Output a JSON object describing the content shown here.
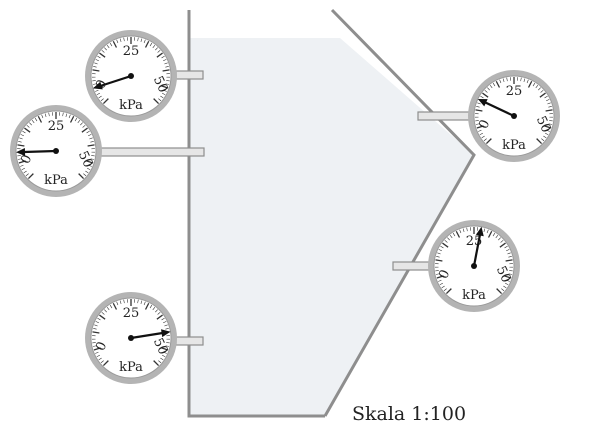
{
  "tank": {
    "fill_color": "#eef1f4",
    "wall_color": "#8e8e8e"
  },
  "gauges": [
    {
      "id": "upper-left",
      "tick_low": "0",
      "tick_mid": "25",
      "tick_high": "50",
      "unit": "kPa",
      "reading": 5
    },
    {
      "id": "middle-left",
      "tick_low": "0",
      "tick_mid": "25",
      "tick_high": "50",
      "unit": "kPa",
      "reading": 8
    },
    {
      "id": "lower-left",
      "tick_low": "0",
      "tick_mid": "25",
      "tick_high": "50",
      "unit": "kPa",
      "reading": 40
    },
    {
      "id": "upper-right",
      "tick_low": "0",
      "tick_mid": "25",
      "tick_high": "50",
      "unit": "kPa",
      "reading": 13
    },
    {
      "id": "lower-right",
      "tick_low": "0",
      "tick_mid": "25",
      "tick_high": "50",
      "unit": "kPa",
      "reading": 27
    }
  ],
  "scale_label": "Skala 1:100",
  "colors": {
    "gauge_ring": "#b4b4b4",
    "needle": "#111111",
    "pipe": "#e6e6e6"
  }
}
